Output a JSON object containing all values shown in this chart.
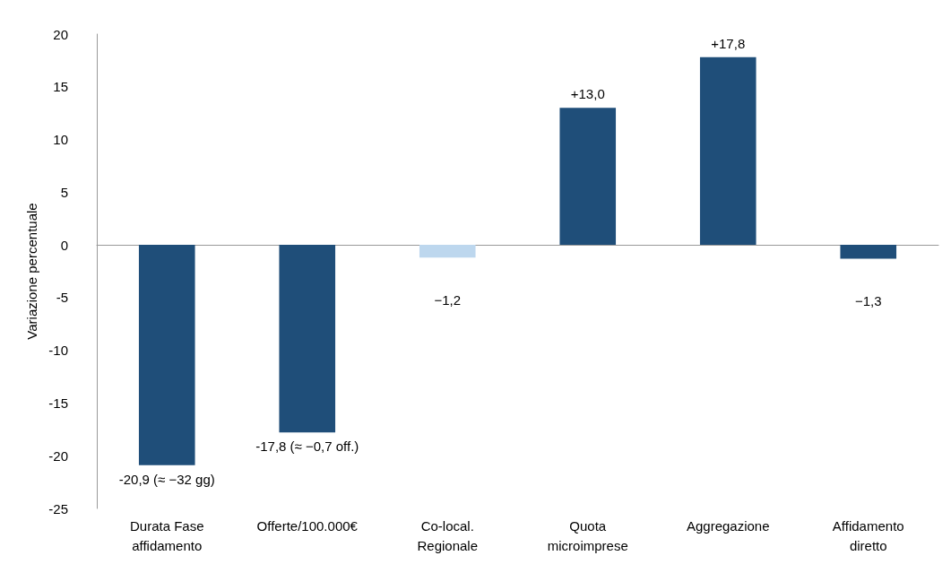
{
  "chart_data": {
    "type": "bar",
    "ylabel": "Variazione percentuale",
    "categories": [
      "Durata Fase affidamento",
      "Offerte/100.000€",
      "Co-local. Regionale",
      "Quota microimprese",
      "Aggregazione",
      "Affidamento diretto"
    ],
    "values": [
      -20.9,
      -17.8,
      -1.2,
      13.0,
      17.8,
      -1.3
    ],
    "colors": [
      "#1f4e79",
      "#1f4e79",
      "#bdd7ee",
      "#1f4e79",
      "#1f4e79",
      "#1f4e79"
    ],
    "value_labels": [
      "-20,9 (≈ −32 gg)",
      "-17,8 (≈ −0,7 off.)",
      "−1,2",
      "+13,0",
      "+17,8",
      "−1,3"
    ],
    "ylim": [
      -25,
      20
    ],
    "yticks": [
      -25,
      -20,
      -15,
      -10,
      -5,
      0,
      5,
      10,
      15,
      20
    ]
  }
}
